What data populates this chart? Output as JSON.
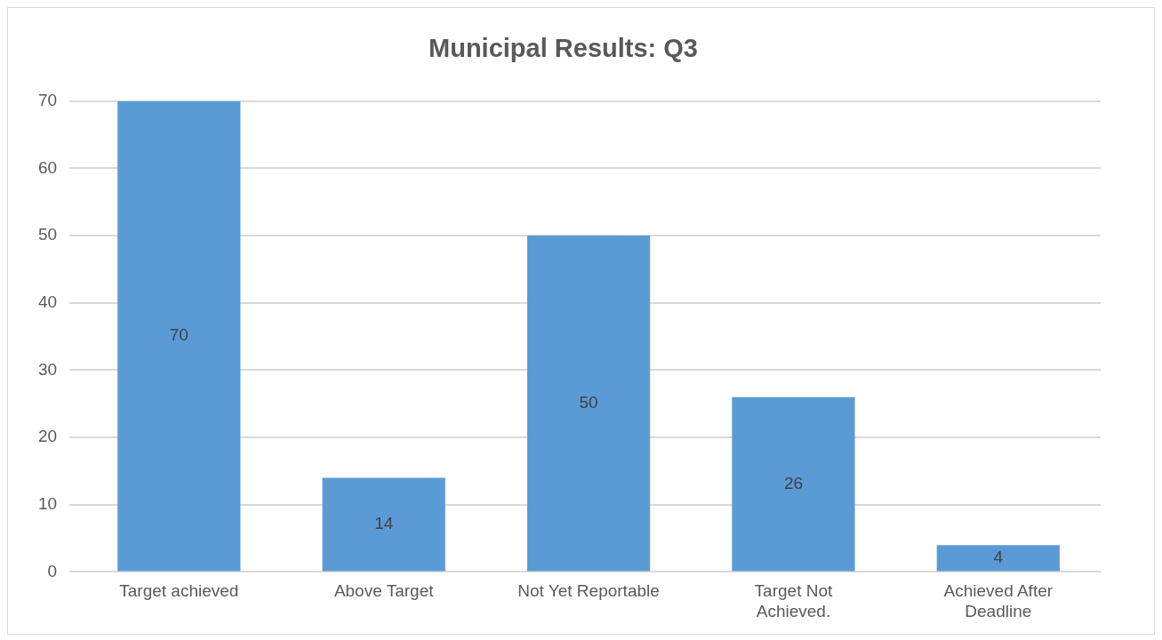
{
  "chart_data": {
    "type": "bar",
    "title": "Municipal Results: Q3",
    "categories": [
      "Target achieved",
      "Above Target",
      "Not Yet Reportable",
      "Target Not Achieved.",
      "Achieved After Deadline"
    ],
    "values": [
      70,
      14,
      50,
      26,
      4
    ],
    "color": "#5b9bd5",
    "ylim": [
      0,
      70
    ],
    "yticks": [
      0,
      10,
      20,
      30,
      40,
      50,
      60,
      70
    ],
    "grid": "y",
    "legend": false,
    "data_labels": true
  }
}
